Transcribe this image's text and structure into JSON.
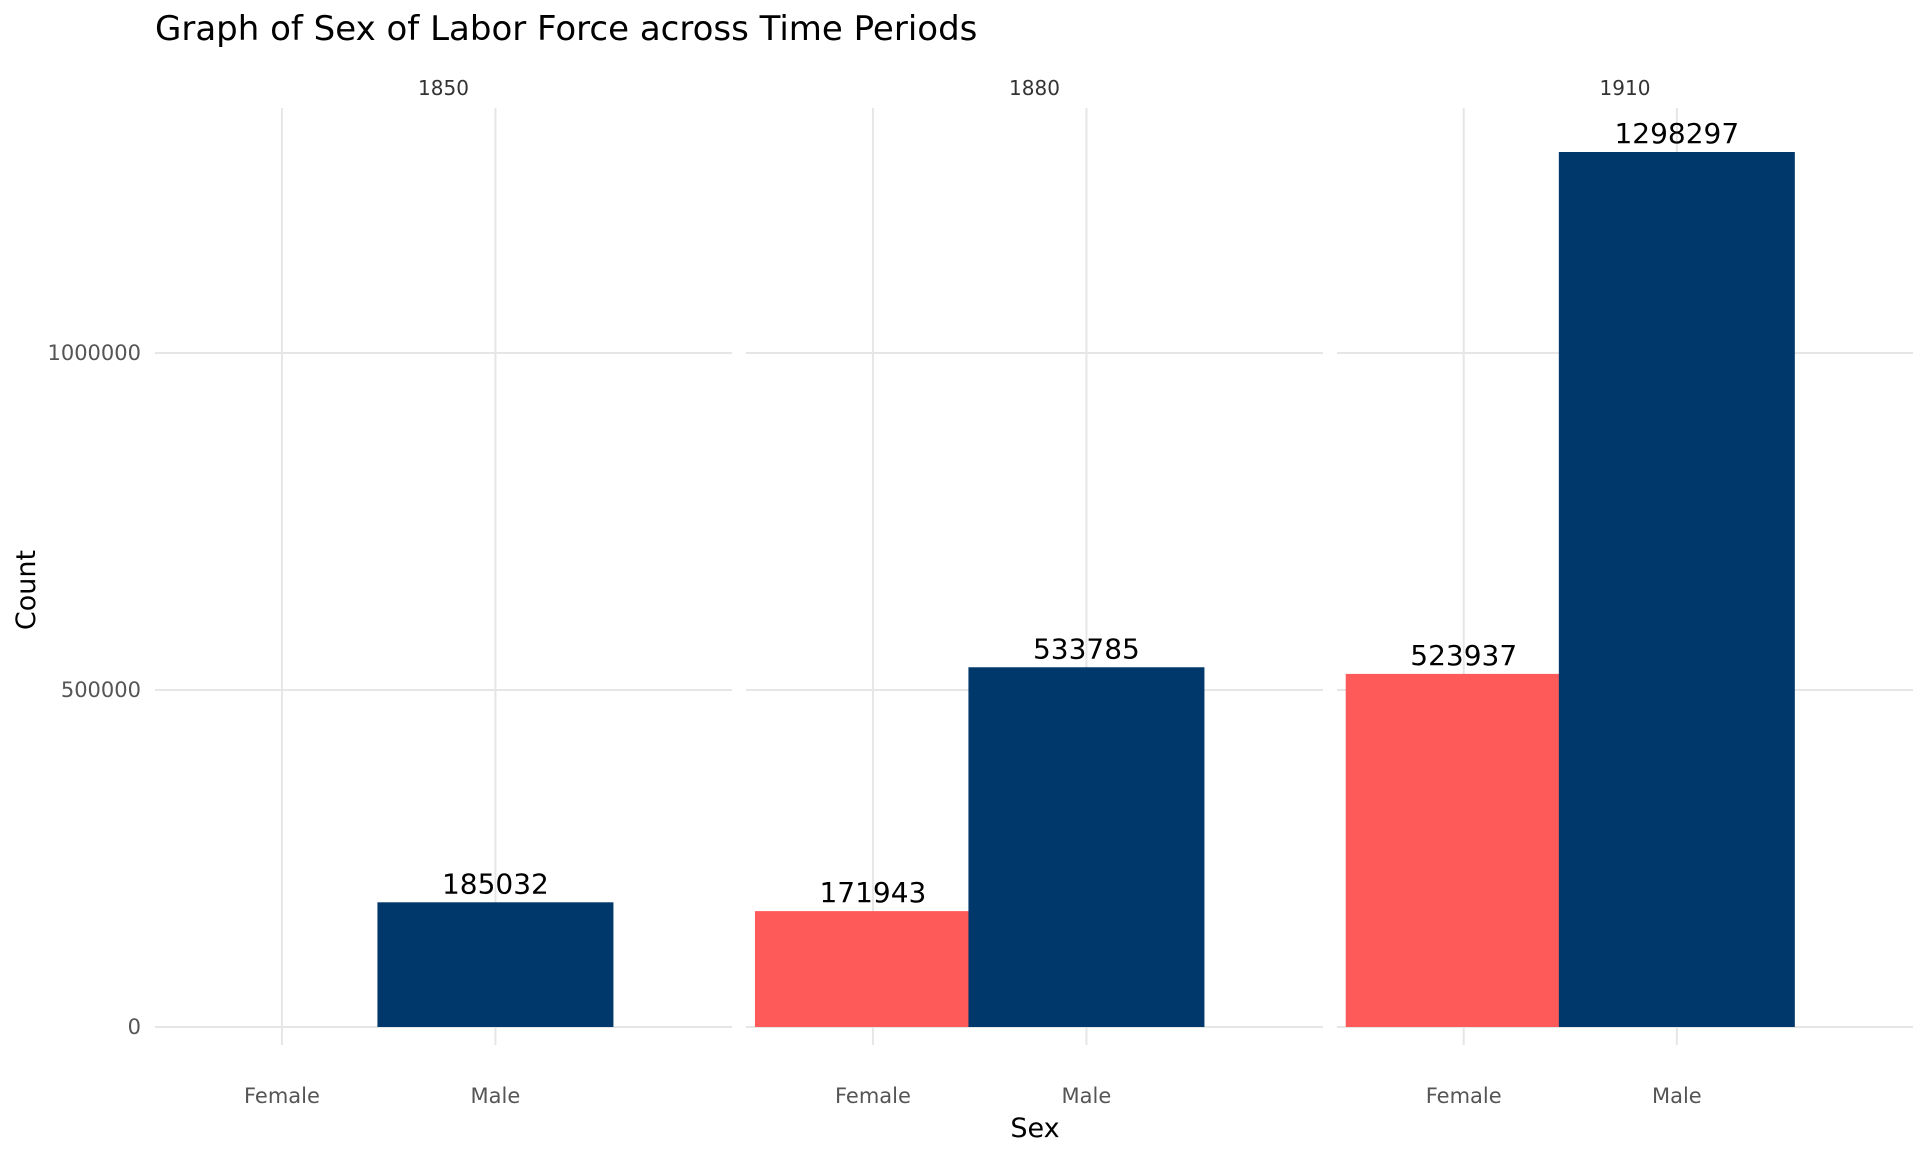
{
  "chart_data": {
    "type": "bar",
    "title": "Graph of Sex of Labor Force across Time Periods",
    "xlabel": "Sex",
    "ylabel": "Count",
    "categories": [
      "Female",
      "Male"
    ],
    "ylim": [
      0,
      1298297
    ],
    "yticks": [
      0,
      500000,
      1000000
    ],
    "ytick_labels": [
      "0",
      "500000",
      "1000000"
    ],
    "grid": true,
    "legend": "none",
    "colors": {
      "Female": "#ff5a5a",
      "Male": "#00386b"
    },
    "facets": [
      {
        "label": "1850",
        "bars": [
          {
            "category": "Male",
            "value": 185032,
            "label": "185032"
          }
        ]
      },
      {
        "label": "1880",
        "bars": [
          {
            "category": "Female",
            "value": 171943,
            "label": "171943"
          },
          {
            "category": "Male",
            "value": 533785,
            "label": "533785"
          }
        ]
      },
      {
        "label": "1910",
        "bars": [
          {
            "category": "Female",
            "value": 523937,
            "label": "523937"
          },
          {
            "category": "Male",
            "value": 1298297,
            "label": "1298297"
          }
        ]
      }
    ]
  }
}
